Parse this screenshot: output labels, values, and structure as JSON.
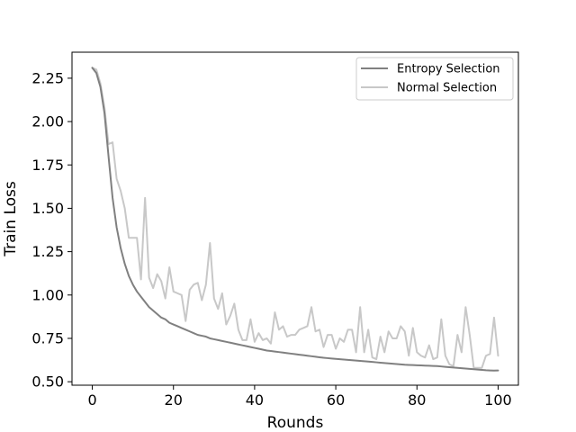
{
  "chart_data": {
    "type": "line",
    "title": "",
    "xlabel": "Rounds",
    "ylabel": "Train Loss",
    "xlim": [
      -5,
      105
    ],
    "ylim": [
      0.48,
      2.4
    ],
    "xticks": [
      0,
      20,
      40,
      60,
      80,
      100
    ],
    "yticks": [
      0.5,
      0.75,
      1.0,
      1.25,
      1.5,
      1.75,
      2.0,
      2.25
    ],
    "xtick_labels": [
      "0",
      "20",
      "40",
      "60",
      "80",
      "100"
    ],
    "ytick_labels": [
      "0.50",
      "0.75",
      "1.00",
      "1.25",
      "1.50",
      "1.75",
      "2.00",
      "2.25"
    ],
    "grid": false,
    "legend_position": "top-right",
    "series": [
      {
        "name": "Entropy Selection",
        "color": "#808080",
        "values": [
          2.31,
          2.28,
          2.2,
          2.05,
          1.8,
          1.56,
          1.39,
          1.27,
          1.18,
          1.11,
          1.06,
          1.02,
          0.99,
          0.96,
          0.93,
          0.91,
          0.89,
          0.87,
          0.86,
          0.84,
          0.83,
          0.82,
          0.81,
          0.8,
          0.79,
          0.78,
          0.77,
          0.765,
          0.76,
          0.75,
          0.745,
          0.74,
          0.735,
          0.73,
          0.725,
          0.72,
          0.715,
          0.71,
          0.705,
          0.7,
          0.695,
          0.69,
          0.685,
          0.68,
          0.677,
          0.674,
          0.671,
          0.668,
          0.665,
          0.662,
          0.659,
          0.656,
          0.653,
          0.65,
          0.647,
          0.644,
          0.641,
          0.638,
          0.636,
          0.634,
          0.632,
          0.63,
          0.628,
          0.626,
          0.624,
          0.622,
          0.62,
          0.618,
          0.616,
          0.614,
          0.612,
          0.61,
          0.608,
          0.606,
          0.604,
          0.602,
          0.6,
          0.598,
          0.597,
          0.596,
          0.595,
          0.594,
          0.593,
          0.592,
          0.591,
          0.59,
          0.588,
          0.586,
          0.584,
          0.582,
          0.58,
          0.578,
          0.576,
          0.574,
          0.572,
          0.57,
          0.568,
          0.566,
          0.565,
          0.564,
          0.565
        ]
      },
      {
        "name": "Normal Selection",
        "color": "#c8c8c8",
        "values": [
          2.31,
          2.3,
          2.22,
          2.08,
          1.87,
          1.88,
          1.67,
          1.6,
          1.5,
          1.33,
          1.33,
          1.33,
          1.09,
          1.56,
          1.1,
          1.04,
          1.12,
          1.08,
          0.98,
          1.16,
          1.02,
          1.01,
          1.0,
          0.85,
          1.03,
          1.06,
          1.07,
          0.97,
          1.06,
          1.3,
          0.98,
          0.92,
          1.01,
          0.83,
          0.88,
          0.95,
          0.8,
          0.74,
          0.74,
          0.86,
          0.73,
          0.78,
          0.74,
          0.75,
          0.72,
          0.9,
          0.8,
          0.82,
          0.76,
          0.77,
          0.77,
          0.8,
          0.81,
          0.82,
          0.93,
          0.79,
          0.8,
          0.7,
          0.77,
          0.77,
          0.69,
          0.75,
          0.73,
          0.8,
          0.8,
          0.67,
          0.93,
          0.67,
          0.8,
          0.64,
          0.63,
          0.76,
          0.67,
          0.79,
          0.75,
          0.75,
          0.82,
          0.79,
          0.65,
          0.81,
          0.67,
          0.65,
          0.64,
          0.71,
          0.63,
          0.64,
          0.86,
          0.65,
          0.6,
          0.59,
          0.77,
          0.67,
          0.93,
          0.77,
          0.58,
          0.58,
          0.58,
          0.65,
          0.66,
          0.87,
          0.65
        ]
      }
    ]
  }
}
